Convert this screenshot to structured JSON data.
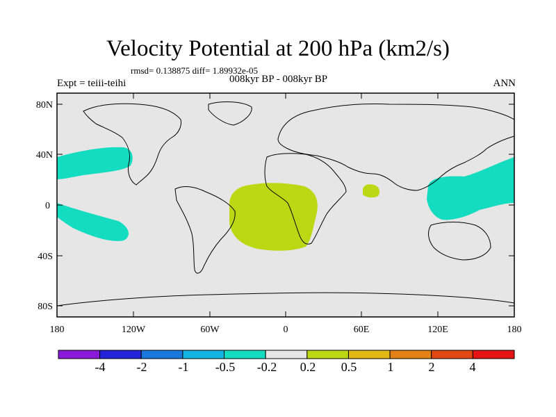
{
  "header": {
    "title": "Velocity Potential at 200 hPa (km2/s)",
    "stats": "rmsd= 0.138875  diff= 1.89932e-05",
    "experiment": "Expt = teiii-teihi",
    "period": "008kyr BP - 008kyr BP",
    "season": "ANN"
  },
  "map": {
    "lat_ticks": [
      "80N",
      "40N",
      "0",
      "40S",
      "80S"
    ],
    "lon_ticks": [
      "180",
      "120W",
      "60W",
      "0",
      "60E",
      "120E",
      "180"
    ],
    "background_color": "#e6e6e6"
  },
  "colorbar": {
    "labels": [
      "-4",
      "-2",
      "-1",
      "-0.5",
      "-0.2",
      "0.2",
      "0.5",
      "1",
      "2",
      "4"
    ],
    "colors": [
      "#8a1ad8",
      "#2424d8",
      "#1a78dc",
      "#12b4e2",
      "#14dcc0",
      "#e6e6e6",
      "#bcd814",
      "#e2b814",
      "#e28214",
      "#e24814",
      "#e61414"
    ]
  }
}
